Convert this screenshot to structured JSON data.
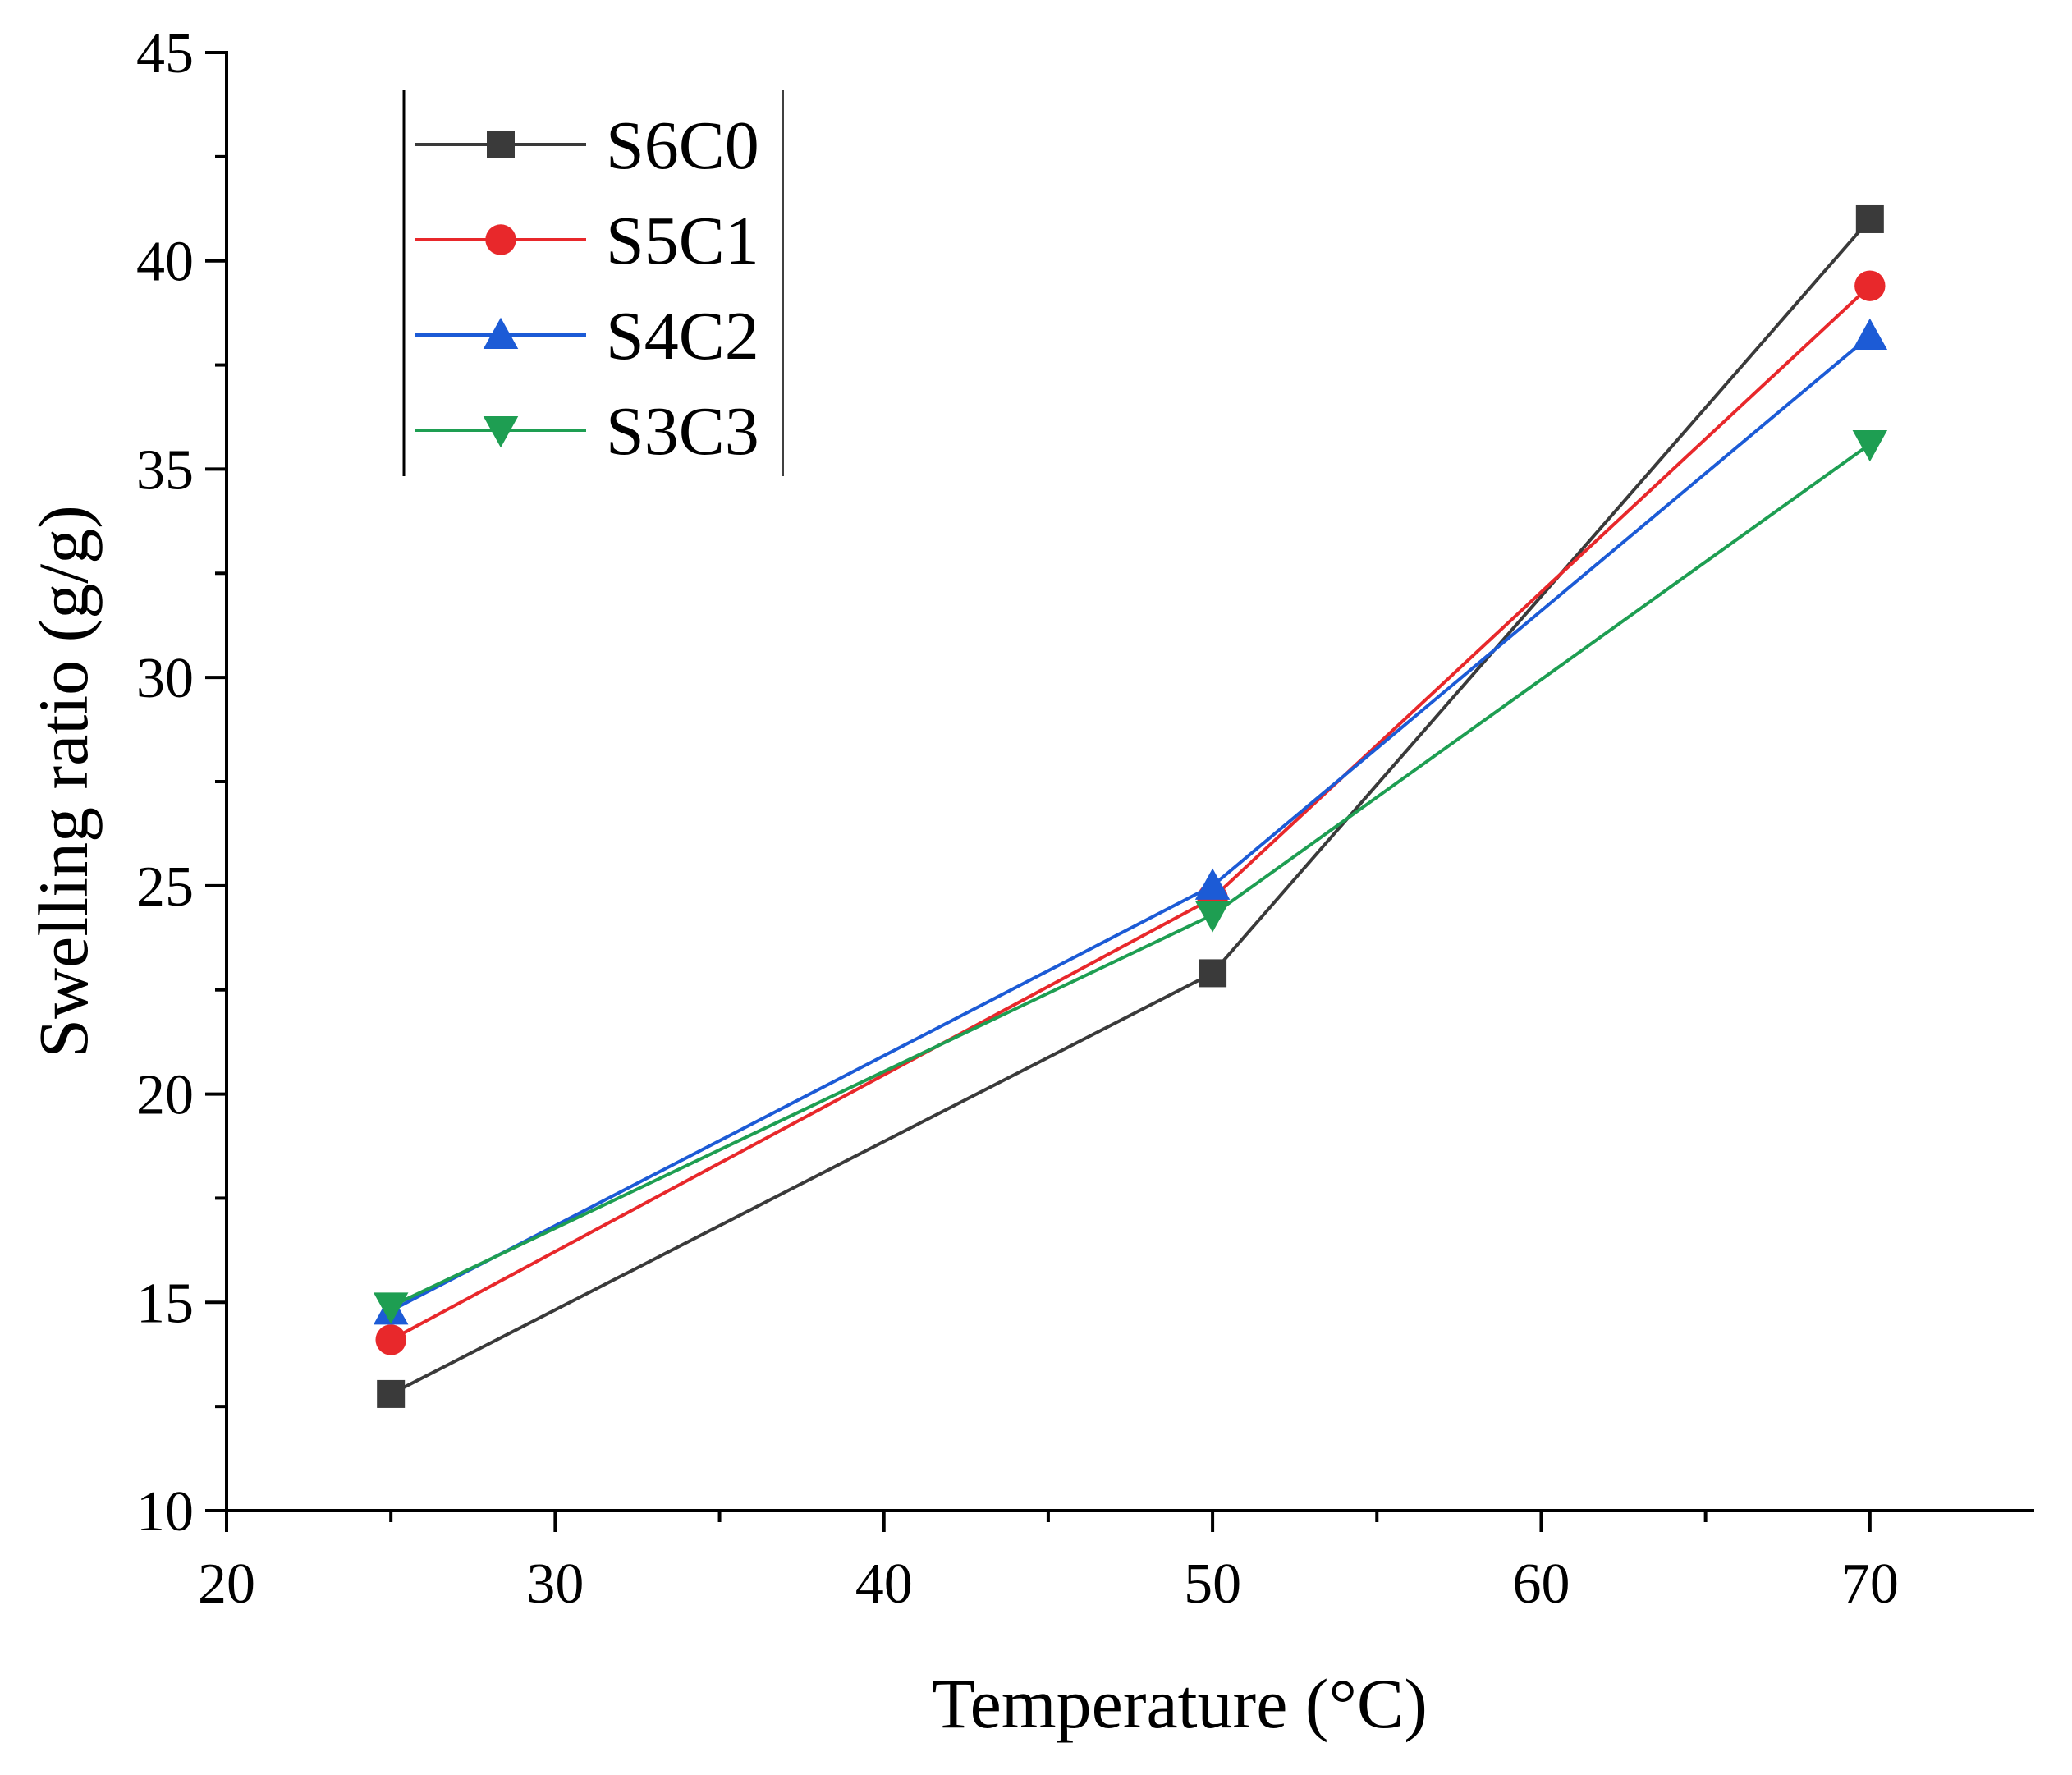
{
  "chart_data": {
    "type": "line",
    "title": "",
    "xlabel": "Temperature (°C)",
    "ylabel": "Swelling ratio (g/g)",
    "xlim": [
      20,
      75
    ],
    "ylim": [
      10,
      45
    ],
    "x_ticks": [
      20,
      30,
      40,
      50,
      60,
      70
    ],
    "y_ticks": [
      10,
      15,
      20,
      25,
      30,
      35,
      40,
      45
    ],
    "grid": false,
    "legend_position": "top-left",
    "x": [
      25,
      50,
      70
    ],
    "series": [
      {
        "name": "S6C0",
        "values": [
          12.8,
          22.9,
          41.0
        ],
        "color": "#3a3a3a",
        "marker": "square"
      },
      {
        "name": "S5C1",
        "values": [
          14.1,
          24.7,
          39.4
        ],
        "color": "#e8282b",
        "marker": "circle"
      },
      {
        "name": "S4C2",
        "values": [
          14.8,
          25.0,
          38.2
        ],
        "color": "#1c5bd6",
        "marker": "triangle-up"
      },
      {
        "name": "S3C3",
        "values": [
          14.9,
          24.3,
          35.6
        ],
        "color": "#1e9e52",
        "marker": "triangle-down"
      }
    ]
  }
}
